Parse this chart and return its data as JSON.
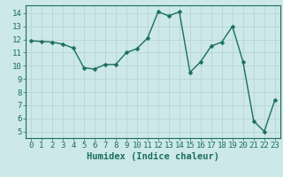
{
  "x": [
    0,
    1,
    2,
    3,
    4,
    5,
    6,
    7,
    8,
    9,
    10,
    11,
    12,
    13,
    14,
    15,
    16,
    17,
    18,
    19,
    20,
    21,
    22,
    23
  ],
  "y": [
    11.9,
    11.85,
    11.8,
    11.65,
    11.35,
    9.85,
    9.75,
    10.1,
    10.1,
    11.0,
    11.3,
    12.1,
    14.1,
    13.8,
    14.1,
    9.5,
    10.3,
    11.5,
    11.8,
    13.0,
    10.3,
    5.8,
    5.0,
    7.4
  ],
  "line_color": "#1a7a6e",
  "marker_color": "#1a7a6e",
  "bg_color": "#cce8e8",
  "grid_color": "#b8d4d4",
  "xlabel": "Humidex (Indice chaleur)",
  "ylim": [
    4.5,
    14.6
  ],
  "xlim": [
    -0.5,
    23.5
  ],
  "yticks": [
    5,
    6,
    7,
    8,
    9,
    10,
    11,
    12,
    13,
    14
  ],
  "xticks": [
    0,
    1,
    2,
    3,
    4,
    5,
    6,
    7,
    8,
    9,
    10,
    11,
    12,
    13,
    14,
    15,
    16,
    17,
    18,
    19,
    20,
    21,
    22,
    23
  ],
  "xlabel_fontsize": 7.5,
  "tick_fontsize": 6.5,
  "linewidth": 1.0,
  "markersize": 2.5,
  "color": "#1a6e60"
}
